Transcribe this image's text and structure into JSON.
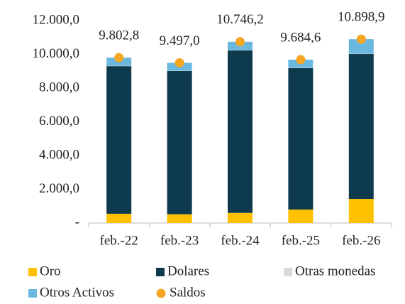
{
  "chart_data": {
    "type": "stacked_bar",
    "categories": [
      "feb.-22",
      "feb.-23",
      "feb.-24",
      "feb.-25",
      "feb.-26"
    ],
    "series": [
      {
        "name": "Oro",
        "color": "#ffc000",
        "values": [
          550,
          520,
          600,
          800,
          1430
        ]
      },
      {
        "name": "Dolares",
        "color": "#0e3a4e",
        "values": [
          8750,
          8490,
          9630,
          8380,
          8590
        ]
      },
      {
        "name": "Otras monedas",
        "color": "#d9d9d9",
        "values": [
          20,
          20,
          20,
          20,
          20
        ]
      },
      {
        "name": "Otros Activos",
        "color": "#6ab7e0",
        "values": [
          483,
          467,
          496,
          485,
          859
        ]
      }
    ],
    "saldos": {
      "name": "Saldos",
      "color": "#f5a623",
      "values": [
        9802.8,
        9497.0,
        10746.2,
        9684.6,
        10898.9
      ],
      "value_labels": [
        "9.802,8",
        "9.497,0",
        "10.746,2",
        "9.684,6",
        "10.898,9"
      ]
    },
    "ylim": [
      0,
      12000
    ],
    "yticks": [
      {
        "value": 0,
        "label": "-"
      },
      {
        "value": 2000,
        "label": "2.000,0"
      },
      {
        "value": 4000,
        "label": "4.000,0"
      },
      {
        "value": 6000,
        "label": "6.000,0"
      },
      {
        "value": 8000,
        "label": "8.000,0"
      },
      {
        "value": 10000,
        "label": "10.000,0"
      },
      {
        "value": 12000,
        "label": "12.000,0"
      }
    ],
    "grid": false
  }
}
